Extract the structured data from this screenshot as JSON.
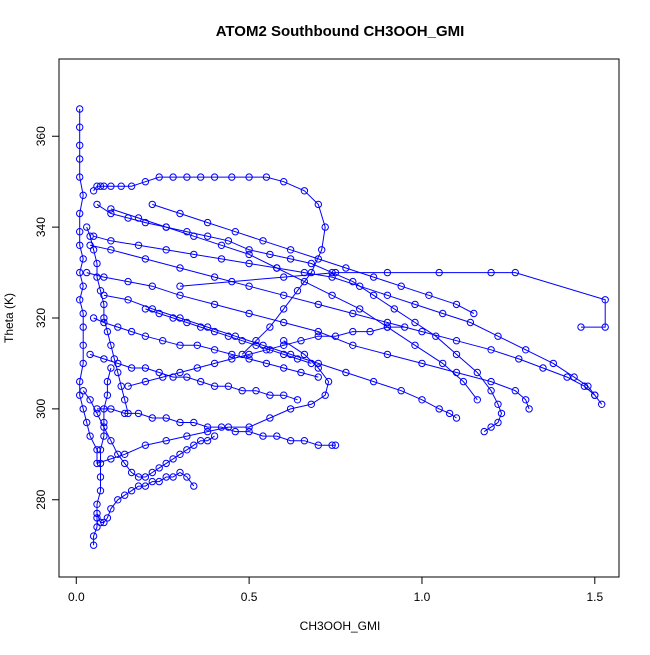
{
  "chart_data": {
    "type": "scatter",
    "title": "ATOM2 Southbound CH3OOH_GMI",
    "xlabel": "CH3OOH_GMI",
    "ylabel": "Theta (K)",
    "xlim": [
      -0.05,
      1.57
    ],
    "ylim": [
      263,
      377
    ],
    "x_ticks": [
      0.0,
      0.5,
      1.0,
      1.5
    ],
    "x_tick_labels": [
      "0.0",
      "0.5",
      "1.0",
      "1.5"
    ],
    "y_ticks": [
      280,
      300,
      320,
      340,
      360
    ],
    "y_tick_labels": [
      "280",
      "300",
      "320",
      "340",
      "360"
    ],
    "grid": false,
    "legend": "none",
    "style": "points connected by lines (open circles)",
    "series_color": "#0000ff",
    "series": [
      {
        "name": "",
        "x": [
          0.01,
          0.01,
          0.01,
          0.01,
          0.01,
          0.02,
          0.01,
          0.01,
          0.01,
          0.02,
          0.01,
          0.02,
          0.01,
          0.02,
          0.02,
          0.02,
          0.02,
          0.01,
          0.01,
          0.02,
          0.03,
          0.04,
          0.06,
          0.06,
          0.1,
          0.14,
          0.2,
          0.26,
          0.32,
          0.38,
          0.44,
          0.5,
          0.56,
          0.62,
          0.68,
          0.72,
          0.73,
          0.7,
          0.66,
          0.6
        ],
        "y": [
          366,
          362,
          358,
          355,
          351,
          347,
          343,
          339,
          336,
          333,
          330,
          327,
          324,
          321,
          318,
          314,
          310,
          306,
          303,
          300,
          297,
          294,
          291,
          288,
          289,
          290,
          292,
          293,
          294,
          295,
          296,
          296,
          298,
          300,
          301,
          303,
          306,
          309,
          312,
          315
        ]
      },
      {
        "name": "",
        "x": [
          0.05,
          0.06,
          0.07,
          0.08,
          0.1,
          0.13,
          0.16,
          0.2,
          0.24,
          0.28,
          0.32,
          0.36,
          0.4,
          0.45,
          0.5,
          0.55,
          0.6,
          0.66,
          0.7,
          0.72,
          0.71,
          0.68,
          0.64,
          0.6,
          0.56,
          0.52,
          0.48
        ],
        "y": [
          348,
          349,
          349,
          349,
          349,
          349,
          349,
          350,
          351,
          351,
          351,
          351,
          351,
          351,
          351,
          351,
          350,
          348,
          345,
          340,
          335,
          330,
          326,
          322,
          318,
          315,
          312
        ]
      },
      {
        "name": "",
        "x": [
          0.06,
          0.1,
          0.15,
          0.2,
          0.26,
          0.32,
          0.38,
          0.44,
          0.5,
          0.56,
          0.62,
          0.68,
          0.74,
          0.8,
          0.86,
          0.92,
          0.98,
          1.04,
          1.1,
          1.16,
          1.2,
          1.22,
          1.23,
          1.22,
          1.2,
          1.18
        ],
        "y": [
          345,
          343,
          342,
          341,
          340,
          339,
          338,
          337,
          335,
          334,
          333,
          332,
          330,
          328,
          325,
          322,
          319,
          316,
          312,
          308,
          304,
          301,
          299,
          297,
          296,
          295
        ]
      },
      {
        "name": "",
        "x": [
          0.05,
          0.1,
          0.18,
          0.26,
          0.34,
          0.42,
          0.5,
          0.58,
          0.66,
          0.74,
          0.82,
          0.9,
          0.98,
          1.06,
          1.14,
          1.22,
          1.3,
          1.38,
          1.44,
          1.48,
          1.5,
          1.52
        ],
        "y": [
          338,
          337,
          336,
          335,
          334,
          333,
          332,
          331,
          330,
          329,
          327,
          325,
          323,
          321,
          319,
          316,
          313,
          310,
          307,
          305,
          303,
          301
        ]
      },
      {
        "name": "",
        "x": [
          0.03,
          0.08,
          0.15,
          0.22,
          0.3,
          0.4,
          0.5,
          0.6,
          0.7,
          0.8,
          0.9,
          1.0,
          1.1,
          1.2,
          1.27,
          1.3,
          1.31
        ],
        "y": [
          330,
          329,
          328,
          327,
          325,
          323,
          321,
          319,
          317,
          314,
          312,
          310,
          308,
          306,
          304,
          302,
          300
        ]
      },
      {
        "name": "",
        "x": [
          0.04,
          0.1,
          0.2,
          0.3,
          0.4,
          0.5,
          0.6,
          0.7,
          0.8,
          0.9,
          1.0,
          1.1,
          1.2,
          1.28,
          1.35,
          1.42,
          1.47,
          1.5
        ],
        "y": [
          336,
          335,
          333,
          331,
          329,
          327,
          325,
          323,
          321,
          319,
          317,
          315,
          313,
          311,
          309,
          307,
          305,
          303
        ]
      },
      {
        "name": "",
        "x": [
          0.05,
          0.08,
          0.12,
          0.16,
          0.2,
          0.25,
          0.3,
          0.35,
          0.4,
          0.45,
          0.5,
          0.55,
          0.6,
          0.65,
          0.7
        ],
        "y": [
          320,
          319,
          318,
          317,
          316,
          315,
          314,
          314,
          313,
          312,
          311,
          310,
          309,
          308,
          307
        ]
      },
      {
        "name": "",
        "x": [
          0.3,
          0.45,
          0.6,
          0.75,
          0.9,
          1.05,
          1.2,
          1.27,
          1.53,
          1.53,
          1.46
        ],
        "y": [
          327,
          328,
          329,
          330,
          330,
          330,
          330,
          330,
          324,
          318,
          318
        ]
      },
      {
        "name": "",
        "x": [
          0.02,
          0.04,
          0.06,
          0.08,
          0.1,
          0.12,
          0.14,
          0.16,
          0.18,
          0.2,
          0.22,
          0.24,
          0.26,
          0.28,
          0.3,
          0.32,
          0.34,
          0.36,
          0.38,
          0.4
        ],
        "y": [
          304,
          302,
          299,
          296,
          293,
          290,
          288,
          286,
          285,
          285,
          286,
          287,
          288,
          289,
          290,
          291,
          292,
          293,
          293,
          294
        ]
      },
      {
        "name": "",
        "x": [
          0.06,
          0.07,
          0.08,
          0.09,
          0.1,
          0.12,
          0.14,
          0.16,
          0.18,
          0.2,
          0.22,
          0.24,
          0.26,
          0.28,
          0.3,
          0.32,
          0.34
        ],
        "y": [
          277,
          275,
          275,
          276,
          278,
          280,
          281,
          282,
          283,
          283,
          284,
          284,
          285,
          285,
          286,
          285,
          283
        ]
      },
      {
        "name": "",
        "x": [
          0.05,
          0.05,
          0.06,
          0.06,
          0.06,
          0.07,
          0.07,
          0.07,
          0.07,
          0.08,
          0.08,
          0.08,
          0.09,
          0.09,
          0.1
        ],
        "y": [
          270,
          272,
          274,
          276,
          279,
          282,
          285,
          288,
          291,
          294,
          297,
          300,
          303,
          306,
          309
        ]
      },
      {
        "name": "",
        "x": [
          0.1,
          0.18,
          0.26,
          0.34,
          0.42,
          0.5,
          0.58,
          0.66,
          0.74,
          0.82,
          0.9,
          0.98,
          1.06,
          1.12,
          1.16
        ],
        "y": [
          344,
          342,
          340,
          338,
          336,
          334,
          331,
          328,
          325,
          322,
          318,
          314,
          310,
          306,
          302
        ]
      },
      {
        "name": "",
        "x": [
          0.08,
          0.15,
          0.22,
          0.3,
          0.38,
          0.46,
          0.54,
          0.62,
          0.7,
          0.78,
          0.86,
          0.94,
          1.0,
          1.05,
          1.08,
          1.1
        ],
        "y": [
          325,
          324,
          322,
          320,
          318,
          316,
          314,
          312,
          310,
          308,
          306,
          304,
          302,
          300,
          299,
          298
        ]
      },
      {
        "name": "",
        "x": [
          0.04,
          0.08,
          0.12,
          0.16,
          0.2,
          0.24,
          0.28,
          0.32,
          0.36,
          0.4,
          0.44,
          0.48,
          0.52,
          0.56,
          0.6,
          0.64
        ],
        "y": [
          312,
          311,
          310,
          309,
          309,
          308,
          307,
          307,
          306,
          305,
          305,
          304,
          304,
          303,
          303,
          302
        ]
      },
      {
        "name": "",
        "x": [
          0.06,
          0.1,
          0.14,
          0.18,
          0.22,
          0.26,
          0.3,
          0.34,
          0.38,
          0.42,
          0.46,
          0.5,
          0.54,
          0.58,
          0.62,
          0.66,
          0.7,
          0.74,
          0.75
        ],
        "y": [
          300,
          300,
          299,
          299,
          298,
          298,
          297,
          297,
          296,
          296,
          295,
          295,
          294,
          294,
          293,
          293,
          292,
          292,
          292
        ]
      },
      {
        "name": "",
        "x": [
          0.03,
          0.04,
          0.05,
          0.06,
          0.06,
          0.07,
          0.08,
          0.08,
          0.09,
          0.1,
          0.11,
          0.12,
          0.13,
          0.14,
          0.15
        ],
        "y": [
          340,
          338,
          335,
          332,
          329,
          326,
          323,
          320,
          317,
          314,
          311,
          308,
          305,
          302,
          299
        ]
      },
      {
        "name": "",
        "x": [
          0.2,
          0.24,
          0.28,
          0.32,
          0.36,
          0.4,
          0.44,
          0.48,
          0.52,
          0.56,
          0.6,
          0.64,
          0.68
        ],
        "y": [
          322,
          321,
          320,
          319,
          318,
          317,
          316,
          315,
          314,
          313,
          312,
          311,
          310
        ]
      },
      {
        "name": "",
        "x": [
          0.15,
          0.2,
          0.25,
          0.3,
          0.35,
          0.4,
          0.45,
          0.5,
          0.55,
          0.6,
          0.65,
          0.7,
          0.75,
          0.8,
          0.85,
          0.9,
          0.95
        ],
        "y": [
          305,
          306,
          307,
          308,
          309,
          310,
          311,
          312,
          313,
          314,
          315,
          316,
          316,
          317,
          317,
          318,
          318
        ]
      },
      {
        "name": "",
        "x": [
          0.22,
          0.3,
          0.38,
          0.46,
          0.54,
          0.62,
          0.7,
          0.78,
          0.86,
          0.94,
          1.02,
          1.1,
          1.15
        ],
        "y": [
          345,
          343,
          341,
          339,
          337,
          335,
          333,
          331,
          329,
          327,
          325,
          323,
          321
        ]
      }
    ]
  }
}
